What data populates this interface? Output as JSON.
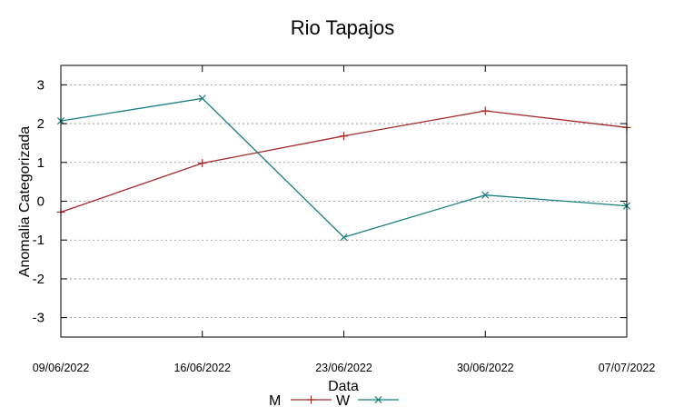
{
  "chart_data": {
    "type": "line",
    "title": "Rio Tapajos",
    "xlabel": "Data",
    "ylabel": "Anomalia Categorizada",
    "categories": [
      "09/06/2022",
      "16/06/2022",
      "23/06/2022",
      "30/06/2022",
      "07/07/2022"
    ],
    "ylim": [
      -3.5,
      3.5
    ],
    "yticks": [
      "-3",
      "-2",
      "-1",
      "0",
      "1",
      "2",
      "3"
    ],
    "grid": true,
    "legend_position": "bottom-center",
    "series": [
      {
        "name": "M",
        "color": "#a52a2a",
        "marker": "plus",
        "values": [
          -0.28,
          0.98,
          1.68,
          2.33,
          1.9
        ]
      },
      {
        "name": "W",
        "color": "#1a7f7f",
        "marker": "cross",
        "values": [
          2.07,
          2.65,
          -0.93,
          0.16,
          -0.12
        ]
      }
    ]
  }
}
